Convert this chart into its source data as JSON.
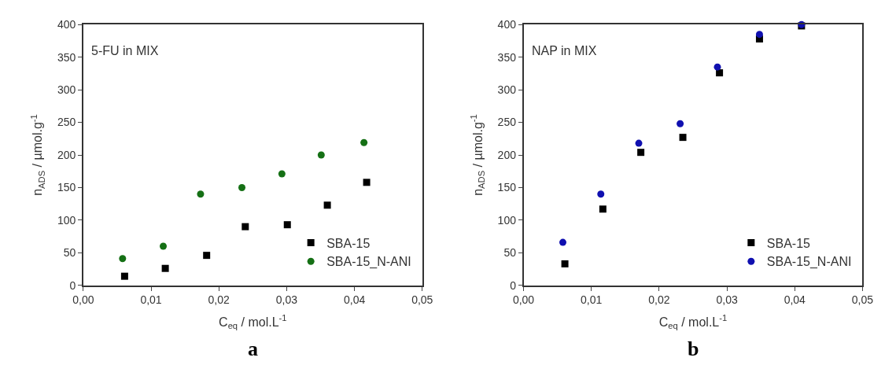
{
  "chart_data": [
    {
      "type": "scatter",
      "xlabel": "C$_{eq}$ / mol.L$^{-1}$",
      "ylabel": "n$_{ADS}$ / µmol.g$^{-1}$",
      "annotations": [
        "5-FU in MIX",
        "a"
      ],
      "xlim": [
        0,
        0.05
      ],
      "xticks": [
        {
          "value": 0,
          "label": "0,00"
        },
        {
          "value": 0.01,
          "label": "0,01"
        },
        {
          "value": 0.02,
          "label": "0,02"
        },
        {
          "value": 0.03,
          "label": "0,03"
        },
        {
          "value": 0.04,
          "label": "0,04"
        },
        {
          "value": 0.05,
          "label": "0,05"
        }
      ],
      "ylim": [
        0,
        400
      ],
      "yticks": [
        0,
        50,
        100,
        150,
        200,
        250,
        300,
        350,
        400
      ],
      "legend": "bottom right",
      "series": [
        {
          "name": "SBA-15",
          "color": "#000000",
          "marker": "square",
          "x": [
            0.0061,
            0.0121,
            0.0182,
            0.0239,
            0.0301,
            0.036,
            0.0418
          ],
          "values": [
            14,
            26,
            46,
            90,
            93,
            123,
            158
          ]
        },
        {
          "name": "SBA-15_N-ANI",
          "color": "#157015",
          "marker": "circle",
          "x": [
            0.0058,
            0.0118,
            0.0173,
            0.0234,
            0.0293,
            0.0351,
            0.0414
          ],
          "values": [
            41,
            60,
            140,
            150,
            171,
            200,
            219
          ]
        }
      ]
    },
    {
      "type": "scatter",
      "xlabel": "C$_{eq}$ / mol.L$^{-1}$",
      "ylabel": "n$_{ADS}$ / µmol.g$^{-1}$",
      "annotations": [
        "NAP in MIX",
        "b"
      ],
      "xlim": [
        0,
        0.05
      ],
      "xticks": [
        {
          "value": 0,
          "label": "0,00"
        },
        {
          "value": 0.01,
          "label": "0,01"
        },
        {
          "value": 0.02,
          "label": "0,02"
        },
        {
          "value": 0.03,
          "label": "0,03"
        },
        {
          "value": 0.04,
          "label": "0,04"
        },
        {
          "value": 0.05,
          "label": "0,05"
        }
      ],
      "ylim": [
        0,
        400
      ],
      "yticks": [
        0,
        50,
        100,
        150,
        200,
        250,
        300,
        350,
        400
      ],
      "legend": "bottom right",
      "series": [
        {
          "name": "SBA-15",
          "color": "#000000",
          "marker": "square",
          "x": [
            0.0061,
            0.0117,
            0.0173,
            0.0235,
            0.0289,
            0.0348,
            0.041
          ],
          "values": [
            33,
            117,
            204,
            227,
            326,
            378,
            398
          ]
        },
        {
          "name": "SBA-15_N-ANI",
          "color": "#1010b0",
          "marker": "circle",
          "x": [
            0.0058,
            0.0114,
            0.017,
            0.0231,
            0.0286,
            0.0348,
            0.041
          ],
          "values": [
            66,
            140,
            218,
            248,
            335,
            385,
            400
          ]
        }
      ]
    }
  ]
}
